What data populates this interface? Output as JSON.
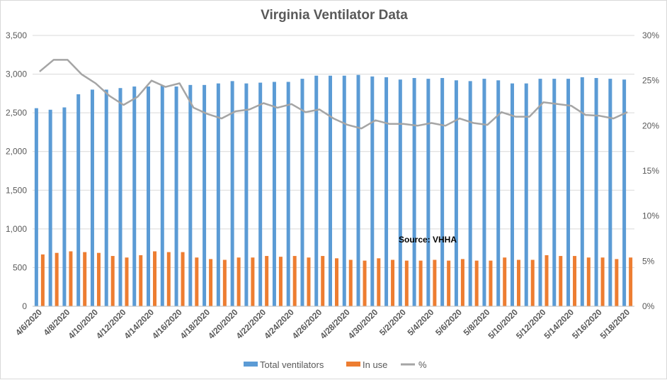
{
  "chart_data": {
    "type": "bar",
    "title": "Virginia Ventilator Data",
    "annotation": "Source: VHHA",
    "categories": [
      "4/6/2020",
      "4/7/2020",
      "4/8/2020",
      "4/9/2020",
      "4/10/2020",
      "4/11/2020",
      "4/12/2020",
      "4/13/2020",
      "4/14/2020",
      "4/15/2020",
      "4/16/2020",
      "4/17/2020",
      "4/18/2020",
      "4/19/2020",
      "4/20/2020",
      "4/21/2020",
      "4/22/2020",
      "4/23/2020",
      "4/24/2020",
      "4/25/2020",
      "4/26/2020",
      "4/27/2020",
      "4/28/2020",
      "4/29/2020",
      "4/30/2020",
      "5/1/2020",
      "5/2/2020",
      "5/3/2020",
      "5/4/2020",
      "5/5/2020",
      "5/6/2020",
      "5/7/2020",
      "5/8/2020",
      "5/9/2020",
      "5/10/2020",
      "5/11/2020",
      "5/12/2020",
      "5/13/2020",
      "5/14/2020",
      "5/15/2020",
      "5/16/2020",
      "5/17/2020",
      "5/18/2020"
    ],
    "tick_labels": [
      "4/6/2020",
      "4/8/2020",
      "4/10/2020",
      "4/12/2020",
      "4/14/2020",
      "4/16/2020",
      "4/18/2020",
      "4/20/2020",
      "4/22/2020",
      "4/24/2020",
      "4/26/2020",
      "4/28/2020",
      "4/30/2020",
      "5/2/2020",
      "5/4/2020",
      "5/6/2020",
      "5/8/2020",
      "5/10/2020",
      "5/12/2020",
      "5/14/2020",
      "5/16/2020",
      "5/18/2020"
    ],
    "series": [
      {
        "name": "Total ventilators",
        "kind": "bar",
        "axis": "left",
        "color": "#5b9bd5",
        "values": [
          2560,
          2540,
          2570,
          2740,
          2800,
          2800,
          2820,
          2840,
          2840,
          2850,
          2840,
          2860,
          2860,
          2880,
          2910,
          2880,
          2890,
          2900,
          2900,
          2940,
          2980,
          2980,
          2980,
          2990,
          2970,
          2960,
          2930,
          2950,
          2940,
          2950,
          2920,
          2910,
          2940,
          2920,
          2880,
          2880,
          2940,
          2940,
          2940,
          2960,
          2950,
          2940,
          2930
        ]
      },
      {
        "name": "In use",
        "kind": "bar",
        "axis": "left",
        "color": "#ed7d31",
        "values": [
          670,
          690,
          710,
          700,
          690,
          650,
          630,
          660,
          710,
          700,
          700,
          630,
          610,
          600,
          630,
          630,
          650,
          640,
          650,
          630,
          650,
          620,
          600,
          590,
          620,
          600,
          590,
          590,
          600,
          590,
          610,
          590,
          590,
          630,
          600,
          600,
          660,
          650,
          650,
          630,
          630,
          610,
          630
        ]
      },
      {
        "name": "%",
        "kind": "line",
        "axis": "right",
        "color": "#a5a5a5",
        "values": [
          26.0,
          27.3,
          27.3,
          25.7,
          24.7,
          23.3,
          22.3,
          23.2,
          25.0,
          24.3,
          24.7,
          22.0,
          21.3,
          20.8,
          21.6,
          21.8,
          22.5,
          22.0,
          22.4,
          21.5,
          21.8,
          20.8,
          20.1,
          19.7,
          20.6,
          20.2,
          20.2,
          20.0,
          20.3,
          20.0,
          20.8,
          20.3,
          20.1,
          21.5,
          21.0,
          21.0,
          22.6,
          22.4,
          22.2,
          21.2,
          21.1,
          20.8,
          21.5
        ]
      }
    ],
    "y_left": {
      "min": 0,
      "max": 3500,
      "ticks": [
        "0",
        "500",
        "1,000",
        "1,500",
        "2,000",
        "2,500",
        "3,000",
        "3,500"
      ]
    },
    "y_right": {
      "min": 0,
      "max": 30,
      "ticks": [
        "0%",
        "5%",
        "10%",
        "15%",
        "20%",
        "25%",
        "30%"
      ]
    },
    "grid": true,
    "legend_position": "bottom",
    "legend": [
      "Total ventilators",
      "In use",
      "%"
    ]
  }
}
